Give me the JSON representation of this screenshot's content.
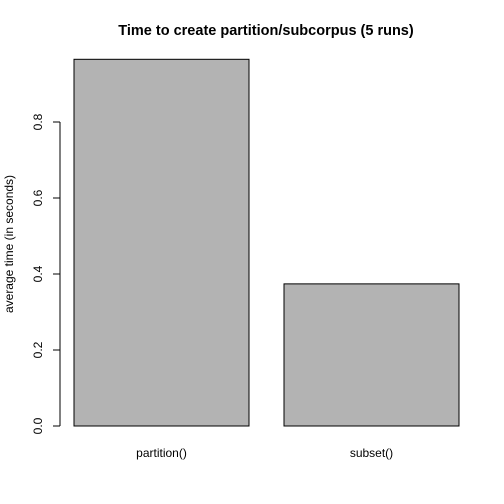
{
  "chart_data": {
    "type": "bar",
    "title": "Time to create partition/subcorpus (5 runs)",
    "xlabel": "",
    "ylabel": "average time (in seconds)",
    "categories": [
      "partition()",
      "subset()"
    ],
    "values": [
      0.965,
      0.374
    ],
    "ylim": [
      0,
      1.0
    ],
    "yticks": [
      0.0,
      0.2,
      0.4,
      0.6,
      0.8
    ],
    "ytick_labels": [
      "0.0",
      "0.2",
      "0.4",
      "0.6",
      "0.8"
    ],
    "bar_color": "#b3b3b3",
    "grid": false,
    "legend": "none"
  }
}
